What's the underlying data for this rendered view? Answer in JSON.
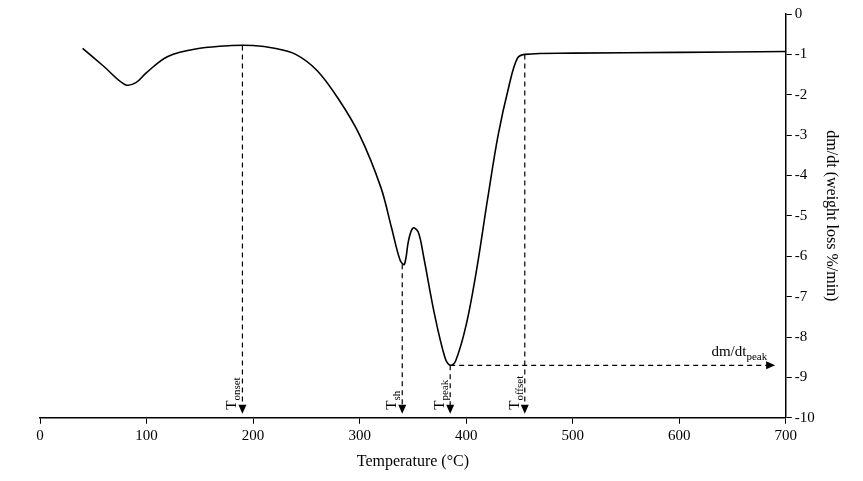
{
  "chart_data": {
    "type": "line",
    "x_label": "Temperature (°C)",
    "y_label": "dm/dt (weight loss %/min)",
    "x": [
      40,
      60,
      80,
      90,
      100,
      120,
      150,
      180,
      200,
      220,
      240,
      260,
      280,
      300,
      320,
      330,
      338,
      342,
      346,
      350,
      355,
      360,
      370,
      380,
      385,
      390,
      400,
      410,
      420,
      430,
      440,
      448,
      455,
      500,
      600,
      700
    ],
    "values": [
      -0.85,
      -1.3,
      -1.75,
      -1.7,
      -1.45,
      -1.05,
      -0.85,
      -0.78,
      -0.78,
      -0.85,
      -1.0,
      -1.4,
      -2.1,
      -3.0,
      -4.3,
      -5.3,
      -6.1,
      -6.2,
      -5.6,
      -5.3,
      -5.4,
      -6.0,
      -7.4,
      -8.5,
      -8.7,
      -8.6,
      -7.7,
      -6.3,
      -4.6,
      -3.0,
      -1.8,
      -1.1,
      -1.0,
      -0.97,
      -0.95,
      -0.93
    ],
    "color": "#000000",
    "xlim": [
      0,
      700
    ],
    "xticks": [
      0,
      100,
      200,
      300,
      400,
      500,
      600,
      700
    ],
    "ylim": [
      -10,
      0
    ],
    "yticks": [
      -10,
      -9,
      -8,
      -7,
      -6,
      -5,
      -4,
      -3,
      -2,
      -1,
      0
    ],
    "grid": false,
    "annotations": [
      {
        "label": "T",
        "subscript": "onset",
        "x": 190,
        "y_from": -0.78,
        "y_to": -9.9
      },
      {
        "label": "T",
        "subscript": "sh",
        "x": 340,
        "y_from": -6.2,
        "y_to": -9.9
      },
      {
        "label": "T",
        "subscript": "peak",
        "x": 385,
        "y_from": -8.7,
        "y_to": -9.9
      },
      {
        "label": "T",
        "subscript": "offset",
        "x": 455,
        "y_from": -1.0,
        "y_to": -9.9
      },
      {
        "label": "dm/dt",
        "subscript": "peak",
        "y": -8.7,
        "x_from": 385,
        "x_to": 690
      }
    ]
  }
}
